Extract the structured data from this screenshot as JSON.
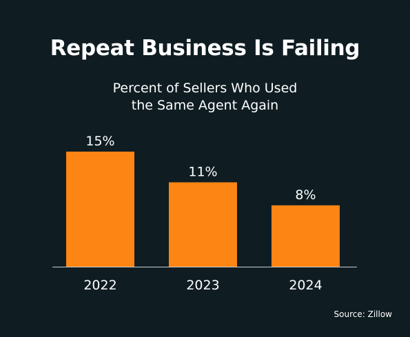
{
  "chart_data": {
    "type": "bar",
    "title": "Repeat Business Is Failing",
    "subtitle_lines": [
      "Percent of Sellers Who Used",
      "the Same Agent Again"
    ],
    "categories": [
      "2022",
      "2023",
      "2024"
    ],
    "values": [
      15,
      11,
      8
    ],
    "value_labels": [
      "15%",
      "11%",
      "8%"
    ],
    "unit": "%",
    "ylim": [
      0,
      15
    ],
    "grid": false,
    "bar_color": "#fd8514",
    "axis_color": "#c9cdd0",
    "source": "Source: Zillow"
  }
}
